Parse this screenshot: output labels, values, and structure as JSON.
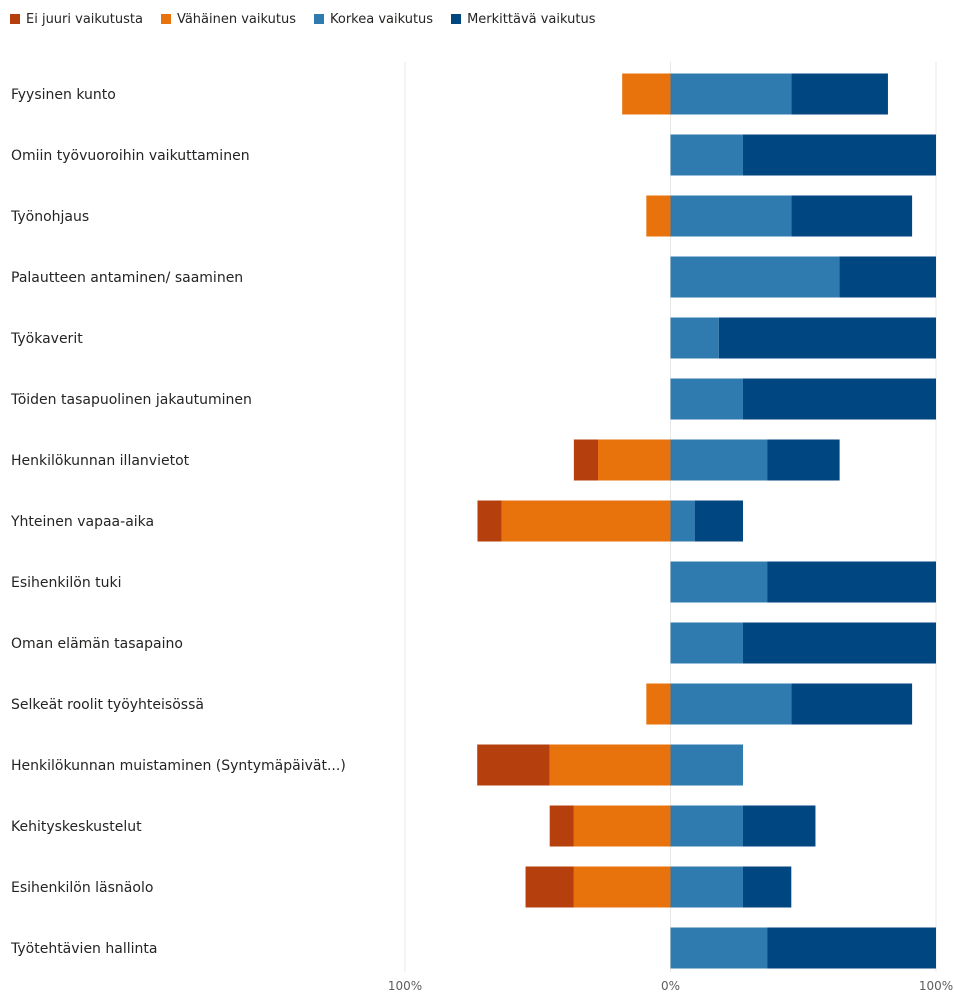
{
  "chart_data": {
    "type": "bar",
    "orientation": "horizontal",
    "stacked": "diverging",
    "legend_position": "top-left",
    "grid": true,
    "xlim": [
      -100,
      100
    ],
    "x_ticks": [
      {
        "value": -100,
        "label": "100%"
      },
      {
        "value": 0,
        "label": "0%"
      },
      {
        "value": 100,
        "label": "100%"
      }
    ],
    "categories": [
      "Fyysinen kunto",
      "Omiin työvuoroihin vaikuttaminen",
      "Työnohjaus",
      "Palautteen antaminen/ saaminen",
      "Työkaverit",
      "Töiden tasapuolinen jakautuminen",
      "Henkilökunnan illanvietot",
      "Yhteinen vapaa-aika",
      "Esihenkilön tuki",
      "Oman elämän tasapaino",
      "Selkeät roolit työyhteisössä",
      "Henkilökunnan muistaminen (Syntymäpäivät...)",
      "Kehityskeskustelut",
      "Esihenkilön läsnäolo",
      "Työtehtävien hallinta"
    ],
    "series": [
      {
        "name": "Ei juuri vaikutusta",
        "side": "negative",
        "color": "#b5400e",
        "values": [
          0,
          0,
          0,
          0,
          0,
          0,
          9.1,
          9.1,
          0,
          0,
          0,
          27.3,
          9.1,
          18.2,
          0
        ]
      },
      {
        "name": "Vähäinen vaikutus",
        "side": "negative",
        "color": "#e8720c",
        "values": [
          18.2,
          0,
          9.1,
          0,
          0,
          0,
          27.3,
          63.6,
          0,
          0,
          9.1,
          45.5,
          36.4,
          36.4,
          0
        ]
      },
      {
        "name": "Korkea vaikutus",
        "side": "positive",
        "color": "#2f7bb0",
        "values": [
          45.5,
          27.3,
          45.5,
          63.6,
          18.2,
          27.3,
          36.4,
          9.1,
          36.4,
          27.3,
          45.5,
          27.3,
          27.3,
          27.3,
          36.4
        ]
      },
      {
        "name": "Merkittävä vaikutus",
        "side": "positive",
        "color": "#004680",
        "values": [
          36.4,
          72.7,
          45.5,
          36.4,
          81.8,
          72.7,
          27.3,
          18.2,
          63.6,
          72.7,
          45.5,
          0,
          27.3,
          18.2,
          63.6
        ]
      }
    ]
  }
}
